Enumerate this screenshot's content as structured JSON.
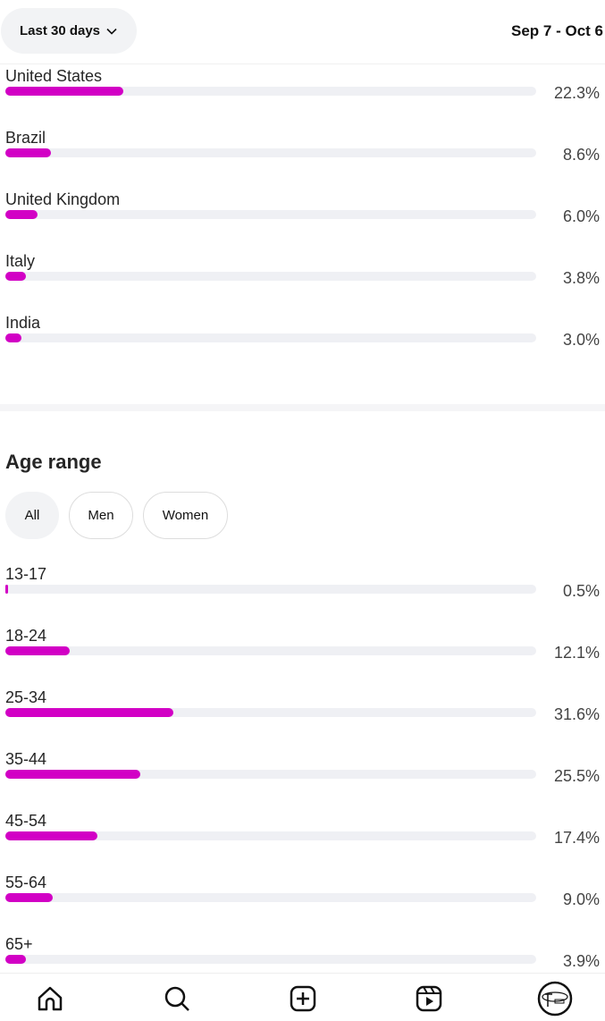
{
  "header": {
    "range_label": "Last 30 days",
    "date_range": "Sep 7 - Oct 6"
  },
  "countries": [
    {
      "label": "United States",
      "value": 22.3,
      "display": "22.3%"
    },
    {
      "label": "Brazil",
      "value": 8.6,
      "display": "8.6%"
    },
    {
      "label": "United Kingdom",
      "value": 6.0,
      "display": "6.0%"
    },
    {
      "label": "Italy",
      "value": 3.8,
      "display": "3.8%"
    },
    {
      "label": "India",
      "value": 3.0,
      "display": "3.0%"
    }
  ],
  "age": {
    "title": "Age range",
    "filters": [
      {
        "label": "All",
        "selected": true
      },
      {
        "label": "Men",
        "selected": false
      },
      {
        "label": "Women",
        "selected": false
      }
    ],
    "items": [
      {
        "label": "13-17",
        "value": 0.5,
        "display": "0.5%"
      },
      {
        "label": "18-24",
        "value": 12.1,
        "display": "12.1%"
      },
      {
        "label": "25-34",
        "value": 31.6,
        "display": "31.6%"
      },
      {
        "label": "35-44",
        "value": 25.5,
        "display": "25.5%"
      },
      {
        "label": "45-54",
        "value": 17.4,
        "display": "17.4%"
      },
      {
        "label": "55-64",
        "value": 9.0,
        "display": "9.0%"
      },
      {
        "label": "65+",
        "value": 3.9,
        "display": "3.9%"
      }
    ]
  },
  "colors": {
    "bar": "#d200c5",
    "track": "#eff0f4"
  },
  "nav": [
    "home-icon",
    "search-icon",
    "create-icon",
    "reels-icon",
    "profile-avatar"
  ]
}
